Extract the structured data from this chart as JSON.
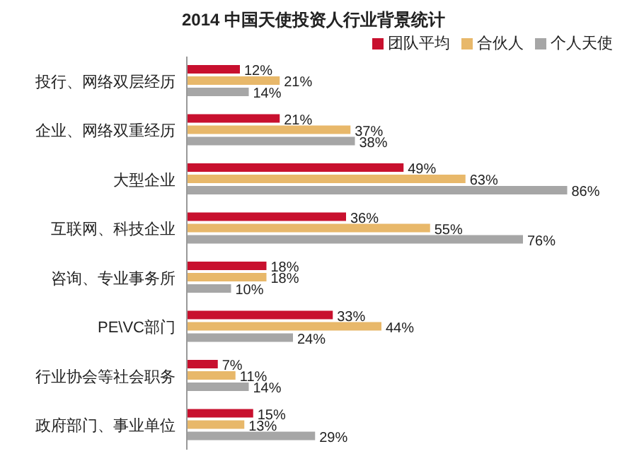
{
  "chart_data": {
    "type": "bar",
    "orientation": "horizontal",
    "title": "2014 中国天使投资人行业背景统计",
    "categories": [
      "投行、网络双层经历",
      "企业、网络双重经历",
      "大型企业",
      "互联网、科技企业",
      "咨询、专业事务所",
      "PE\\VC部门",
      "行业协会等社会职务",
      "政府部门、事业单位"
    ],
    "series": [
      {
        "name": "团队平均",
        "color": "#c8102e",
        "values": [
          12,
          21,
          49,
          36,
          18,
          33,
          7,
          15
        ],
        "value_labels": [
          "12%",
          "21%",
          "49%",
          "36%",
          "18%",
          "33%",
          "7%",
          "15%"
        ]
      },
      {
        "name": "合伙人",
        "color": "#e8b86a",
        "values": [
          21,
          37,
          63,
          55,
          18,
          44,
          11,
          13
        ],
        "value_labels": [
          "21%",
          "37%",
          "63%",
          "55%",
          "18%",
          "44%",
          "11%",
          "13%"
        ]
      },
      {
        "name": "个人天使",
        "color": "#a6a6a6",
        "values": [
          14,
          38,
          86,
          76,
          10,
          24,
          14,
          29
        ],
        "value_labels": [
          "14%",
          "38%",
          "86%",
          "76%",
          "10%",
          "24%",
          "14%",
          "29%"
        ]
      }
    ],
    "legend": "top right"
  }
}
